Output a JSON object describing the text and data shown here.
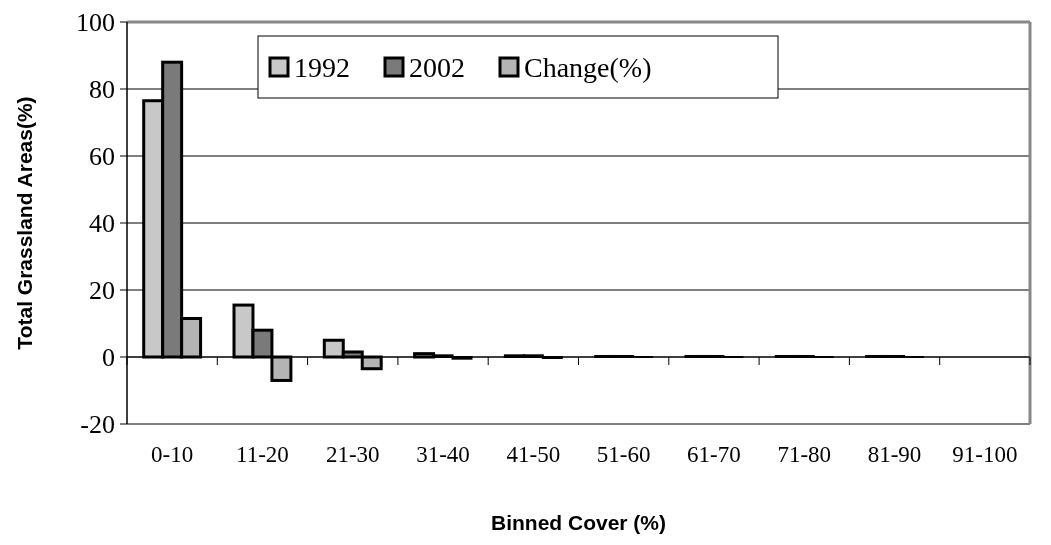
{
  "chart_data": {
    "type": "bar",
    "xlabel": "Binned Cover (%)",
    "ylabel": "Total Grassland Areas(%)",
    "categories": [
      "0-10",
      "11-20",
      "21-30",
      "31-40",
      "41-50",
      "51-60",
      "61-70",
      "71-80",
      "81-90",
      "91-100"
    ],
    "series": [
      {
        "name": "1992",
        "color": "#c8c8c8",
        "values": [
          76.5,
          15.5,
          5,
          1,
          0.5,
          0.3,
          0.3,
          0.3,
          0.3,
          null
        ]
      },
      {
        "name": "2002",
        "color": "#7a7a7a",
        "values": [
          88,
          8,
          1.5,
          0.5,
          0.5,
          0.3,
          0.3,
          0.3,
          0.3,
          null
        ]
      },
      {
        "name": "Change(%)",
        "color": "#b4b4b4",
        "values": [
          11.5,
          -7,
          -3.5,
          -0.5,
          -0.3,
          0,
          0,
          0,
          0,
          null
        ]
      }
    ],
    "ylim": [
      -20,
      100
    ],
    "yticks": [
      -20,
      0,
      20,
      40,
      60,
      80,
      100
    ],
    "grid": "y",
    "legend": "top"
  }
}
